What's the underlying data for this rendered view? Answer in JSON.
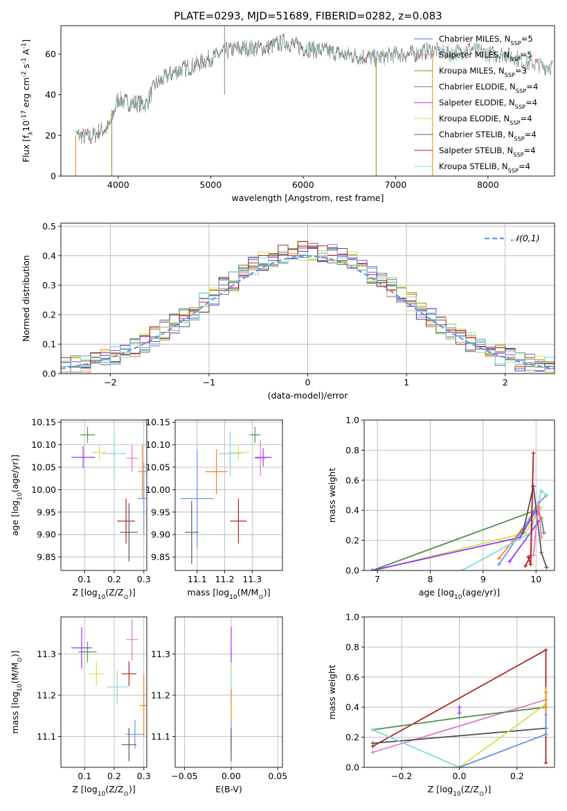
{
  "figure_title": "PLATE=0293, MJD=51689, FIBERID=0282, z=0.083",
  "colors": {
    "c0": "#4c72b0",
    "c1": "#6495ed",
    "c2": "#ff7f0e",
    "c3": "#8c8c00",
    "c4": "#4f8f4f",
    "c5": "#9b30ff",
    "c6": "#d0e050",
    "c7": "#555555",
    "c8": "#b22222",
    "c9": "#7fd8d8",
    "salp_miles": "#e377c2"
  },
  "chart_data": [
    {
      "id": "spectrum",
      "type": "line",
      "xlabel": "wavelength [Angstrom, rest frame]",
      "ylabel": "Flux [f$_\\lambda$10$^{-17}$ erg cm$^{-2}$ s$^{-1}$ A$^{-1}$]",
      "xlim": [
        3380,
        8720
      ],
      "ylim": [
        0,
        74
      ],
      "xticks": [
        4000,
        5000,
        6000,
        7000,
        8000
      ],
      "yticks": [
        0,
        20,
        40,
        60
      ],
      "grid": false,
      "legend_position": "top-right",
      "continuum": {
        "x": [
          3500,
          3600,
          3700,
          3800,
          3900,
          4000,
          4100,
          4200,
          4300,
          4400,
          4600,
          4800,
          5000,
          5200,
          5400,
          5600,
          5800,
          6000,
          6200,
          6400,
          6600,
          6800,
          7000,
          7200,
          7400,
          7600,
          7800,
          8000,
          8200,
          8400,
          8600
        ],
        "y": [
          20,
          20,
          19,
          22,
          24,
          38,
          36,
          36,
          35,
          45,
          51,
          54,
          58,
          62,
          63,
          63,
          66,
          63,
          62,
          60,
          59,
          58,
          60,
          60,
          62,
          60,
          63,
          60,
          60,
          56,
          54
        ]
      },
      "series": [
        {
          "name": "Chabrier MILES, N$_{SSP}$=5",
          "color_key": "c0",
          "xrange": [
            3540,
            7400
          ]
        },
        {
          "name": "Salpeter MILES, N$_{SSP}$=5",
          "color_key": "salp_miles",
          "xrange": [
            3540,
            7400
          ]
        },
        {
          "name": "Kroupa MILES, N$_{SSP}$=3",
          "color_key": "c3",
          "xrange": [
            3540,
            7400
          ]
        },
        {
          "name": "Chabrier ELODIE, N$_{SSP}$=4",
          "color_key": "c4",
          "xrange": [
            3900,
            6800
          ]
        },
        {
          "name": "Salpeter ELODIE, N$_{SSP}$=4",
          "color_key": "c5",
          "xrange": [
            3900,
            6800
          ]
        },
        {
          "name": "Kroupa ELODIE, N$_{SSP}$=4",
          "color_key": "c6",
          "xrange": [
            3900,
            6800
          ]
        },
        {
          "name": "Chabrier STELIB, N$_{SSP}$=4",
          "color_key": "c7",
          "xrange": [
            3540,
            8700
          ]
        },
        {
          "name": "Salpeter STELIB, N$_{SSP}$=4",
          "color_key": "c8",
          "xrange": [
            3540,
            8700
          ]
        },
        {
          "name": "Kroupa STELIB, N$_{SSP}$=4",
          "color_key": "c9",
          "xrange": [
            3540,
            8700
          ]
        }
      ]
    },
    {
      "id": "residuals",
      "type": "histogram",
      "xlabel": "(data-model)/error",
      "ylabel": "Normed distribution",
      "xlim": [
        -2.5,
        2.5
      ],
      "ylim": [
        0,
        0.51
      ],
      "xticks": [
        -2,
        -1,
        0,
        1,
        2
      ],
      "yticks": [
        0.0,
        0.1,
        0.2,
        0.3,
        0.4,
        0.5
      ],
      "grid": true,
      "reference_curve": {
        "name": "$\\mathcal{N}(0,1)$",
        "mean": 0,
        "sigma": 1,
        "color_key": "c1",
        "style": "dashed"
      },
      "legend_position": "top-right",
      "bin_width": 0.1,
      "series_color_keys": [
        "c0",
        "c1",
        "c2",
        "c3",
        "c4",
        "c5",
        "c6",
        "c7",
        "c8",
        "c9"
      ]
    },
    {
      "id": "age-vs-Z",
      "type": "errorbar",
      "xlabel": "Z [log$_{10}$(Z/Z$_\\odot$)]",
      "ylabel": "age  [log$_{10}$(age/yr)]",
      "xlim": [
        0.02,
        0.31
      ],
      "ylim": [
        9.82,
        10.155
      ],
      "xticks": [
        0.1,
        0.2,
        0.3
      ],
      "yticks": [
        9.85,
        9.9,
        9.95,
        10.0,
        10.05,
        10.1,
        10.15
      ],
      "points": [
        {
          "x": 0.11,
          "y": 10.122,
          "xerr": 0.025,
          "yerr": 0.018,
          "color_key": "c4"
        },
        {
          "x": 0.15,
          "y": 10.083,
          "xerr": 0.025,
          "yerr": 0.018,
          "color_key": "c6"
        },
        {
          "x": 0.095,
          "y": 10.072,
          "xerr": 0.04,
          "yerr": 0.025,
          "color_key": "c5"
        },
        {
          "x": 0.26,
          "y": 10.07,
          "xerr": 0.02,
          "yerr": 0.03,
          "color_key": "salp_miles"
        },
        {
          "x": 0.2,
          "y": 10.08,
          "xerr": 0.04,
          "yerr": 0.05,
          "color_key": "c9"
        },
        {
          "x": 0.295,
          "y": 10.04,
          "xerr": 0.015,
          "yerr": 0.06,
          "color_key": "c2"
        },
        {
          "x": 0.3,
          "y": 9.98,
          "xerr": 0.02,
          "yerr": 0.08,
          "color_key": "c1"
        },
        {
          "x": 0.24,
          "y": 9.93,
          "xerr": 0.03,
          "yerr": 0.05,
          "color_key": "c8"
        },
        {
          "x": 0.25,
          "y": 9.905,
          "xerr": 0.03,
          "yerr": 0.065,
          "color_key": "c7"
        }
      ]
    },
    {
      "id": "age-vs-mass",
      "type": "errorbar",
      "xlabel": "mass [log$_{10}$(M/M$_\\odot$)]",
      "ylabel": "",
      "xlim": [
        11.02,
        11.41
      ],
      "ylim": [
        9.82,
        10.155
      ],
      "xticks": [
        11.1,
        11.2,
        11.3
      ],
      "yticks": [
        9.85,
        9.9,
        9.95,
        10.0,
        10.05,
        10.1,
        10.15
      ],
      "points": [
        {
          "x": 11.31,
          "y": 10.122,
          "xerr": 0.02,
          "yerr": 0.018,
          "color_key": "c4"
        },
        {
          "x": 11.25,
          "y": 10.083,
          "xerr": 0.04,
          "yerr": 0.018,
          "color_key": "c6"
        },
        {
          "x": 11.34,
          "y": 10.072,
          "xerr": 0.03,
          "yerr": 0.02,
          "color_key": "c5"
        },
        {
          "x": 11.33,
          "y": 10.07,
          "xerr": 0.02,
          "yerr": 0.04,
          "color_key": "salp_miles"
        },
        {
          "x": 11.22,
          "y": 10.08,
          "xerr": 0.04,
          "yerr": 0.05,
          "color_key": "c9"
        },
        {
          "x": 11.17,
          "y": 10.04,
          "xerr": 0.04,
          "yerr": 0.05,
          "color_key": "c2"
        },
        {
          "x": 11.1,
          "y": 9.98,
          "xerr": 0.06,
          "yerr": 0.11,
          "color_key": "c1"
        },
        {
          "x": 11.25,
          "y": 9.93,
          "xerr": 0.03,
          "yerr": 0.05,
          "color_key": "c8"
        },
        {
          "x": 11.08,
          "y": 9.905,
          "xerr": 0.025,
          "yerr": 0.07,
          "color_key": "c7"
        }
      ]
    },
    {
      "id": "massweight-vs-age",
      "type": "line",
      "xlabel": "age  [log$_{10}$(age/yr)]",
      "ylabel": "mass weight",
      "xlim": [
        6.75,
        10.35
      ],
      "ylim": [
        0,
        1.0
      ],
      "xticks": [
        7,
        8,
        9,
        10
      ],
      "yticks": [
        0.0,
        0.2,
        0.4,
        0.6,
        0.8,
        1.0
      ],
      "grid": true,
      "series": [
        {
          "color_key": "c4",
          "points": [
            [
              6.9,
              0.0
            ],
            [
              10.0,
              0.4
            ],
            [
              10.1,
              0.35
            ],
            [
              10.15,
              0.25
            ]
          ]
        },
        {
          "color_key": "c6",
          "points": [
            [
              6.95,
              0.0
            ],
            [
              9.8,
              0.25
            ],
            [
              10.1,
              0.42
            ],
            [
              10.0,
              0.38
            ]
          ]
        },
        {
          "color_key": "c5",
          "points": [
            [
              6.9,
              0.0
            ],
            [
              9.7,
              0.22
            ],
            [
              10.0,
              0.4
            ],
            [
              10.1,
              0.35
            ],
            [
              9.5,
              0.06
            ]
          ]
        },
        {
          "color_key": "c2",
          "points": [
            [
              9.3,
              0.08
            ],
            [
              9.9,
              0.35
            ],
            [
              10.0,
              0.42
            ],
            [
              10.1,
              0.35
            ]
          ]
        },
        {
          "color_key": "c1",
          "points": [
            [
              9.3,
              0.04
            ],
            [
              9.8,
              0.3
            ],
            [
              10.05,
              0.45
            ],
            [
              10.2,
              0.5
            ]
          ]
        },
        {
          "color_key": "c9",
          "points": [
            [
              8.6,
              0.0
            ],
            [
              9.9,
              0.25
            ],
            [
              10.1,
              0.53
            ],
            [
              10.2,
              0.5
            ]
          ]
        },
        {
          "color_key": "c7",
          "points": [
            [
              9.75,
              0.25
            ],
            [
              9.95,
              0.56
            ],
            [
              10.1,
              0.12
            ],
            [
              10.2,
              0.02
            ]
          ]
        },
        {
          "color_key": "c8",
          "points": [
            [
              9.8,
              0.03
            ],
            [
              9.9,
              0.1
            ],
            [
              9.95,
              0.78
            ],
            [
              9.9,
              0.04
            ],
            [
              9.85,
              0.09
            ]
          ]
        },
        {
          "color_key": "salp_miles",
          "points": [
            [
              9.95,
              0.1
            ],
            [
              10.05,
              0.45
            ],
            [
              10.1,
              0.22
            ]
          ]
        }
      ]
    },
    {
      "id": "mass-vs-Z",
      "type": "errorbar",
      "xlabel": "Z [log$_{10}$(Z/Z$_\\odot$)]",
      "ylabel": "mass [log$_{10}$(M/M$_\\odot$)]",
      "xlim": [
        0.02,
        0.31
      ],
      "ylim": [
        11.025,
        11.39
      ],
      "xticks": [
        0.1,
        0.2,
        0.3
      ],
      "yticks": [
        11.1,
        11.2,
        11.3
      ],
      "points": [
        {
          "x": 0.11,
          "y": 11.305,
          "xerr": 0.03,
          "yerr": 0.025,
          "color_key": "c4"
        },
        {
          "x": 0.09,
          "y": 11.315,
          "xerr": 0.035,
          "yerr": 0.05,
          "color_key": "c5"
        },
        {
          "x": 0.26,
          "y": 11.335,
          "xerr": 0.02,
          "yerr": 0.05,
          "color_key": "salp_miles"
        },
        {
          "x": 0.14,
          "y": 11.252,
          "xerr": 0.025,
          "yerr": 0.03,
          "color_key": "c6"
        },
        {
          "x": 0.25,
          "y": 11.252,
          "xerr": 0.025,
          "yerr": 0.03,
          "color_key": "c8"
        },
        {
          "x": 0.21,
          "y": 11.22,
          "xerr": 0.035,
          "yerr": 0.04,
          "color_key": "c9"
        },
        {
          "x": 0.3,
          "y": 11.175,
          "xerr": 0.015,
          "yerr": 0.075,
          "color_key": "c2"
        },
        {
          "x": 0.27,
          "y": 11.105,
          "xerr": 0.03,
          "yerr": 0.035,
          "color_key": "c1"
        },
        {
          "x": 0.25,
          "y": 11.08,
          "xerr": 0.025,
          "yerr": 0.04,
          "color_key": "c7"
        }
      ]
    },
    {
      "id": "mass-vs-ebv",
      "type": "errorbar",
      "xlabel": "E(B-V)",
      "ylabel": "",
      "xlim": [
        -0.06,
        0.055
      ],
      "ylim": [
        11.025,
        11.39
      ],
      "xticks": [
        -0.05,
        0.0,
        0.05
      ],
      "yticks": [
        11.1,
        11.2,
        11.3
      ],
      "grid": true,
      "points": [
        {
          "x": 0.0,
          "y": 11.315,
          "xerr": 0.0,
          "yerr": 0.05,
          "color_key": "c5"
        },
        {
          "x": 0.0,
          "y": 11.25,
          "xerr": 0.0,
          "yerr": 0.03,
          "color_key": "c6"
        },
        {
          "x": 0.0,
          "y": 11.22,
          "xerr": 0.0,
          "yerr": 0.04,
          "color_key": "c9"
        },
        {
          "x": 0.0,
          "y": 11.175,
          "xerr": 0.0,
          "yerr": 0.04,
          "color_key": "c2"
        },
        {
          "x": 0.0,
          "y": 11.105,
          "xerr": 0.0,
          "yerr": 0.035,
          "color_key": "c1"
        },
        {
          "x": 0.0,
          "y": 11.08,
          "xerr": 0.0,
          "yerr": 0.04,
          "color_key": "c7"
        }
      ]
    },
    {
      "id": "massweight-vs-Z",
      "type": "line",
      "xlabel": "Z [log$_{10}$(Z/Z$_\\odot$)]",
      "ylabel": "mass weight",
      "xlim": [
        -0.33,
        0.33
      ],
      "ylim": [
        0,
        1.0
      ],
      "xticks": [
        -0.2,
        0.0,
        0.2
      ],
      "yticks": [
        0.0,
        0.2,
        0.4,
        0.6,
        0.8,
        1.0
      ],
      "grid": true,
      "series": [
        {
          "color_key": "c8",
          "points": [
            [
              -0.3,
              0.14
            ],
            [
              0.3,
              0.78
            ],
            [
              0.3,
              0.03
            ]
          ]
        },
        {
          "color_key": "salp_miles",
          "points": [
            [
              -0.3,
              0.1
            ],
            [
              0.3,
              0.45
            ]
          ]
        },
        {
          "color_key": "c4",
          "points": [
            [
              -0.3,
              0.25
            ],
            [
              0.0,
              0.33
            ],
            [
              0.3,
              0.4
            ]
          ]
        },
        {
          "color_key": "c7",
          "points": [
            [
              -0.3,
              0.16
            ],
            [
              0.3,
              0.26
            ]
          ]
        },
        {
          "color_key": "c9",
          "points": [
            [
              -0.3,
              0.25
            ],
            [
              0.0,
              0.0
            ],
            [
              0.3,
              0.22
            ]
          ]
        },
        {
          "color_key": "c6",
          "points": [
            [
              0.0,
              0.0
            ],
            [
              0.3,
              0.42
            ],
            [
              0.3,
              0.52
            ]
          ]
        },
        {
          "color_key": "c5",
          "points": [
            [
              0.0,
              0.4
            ],
            [
              0.0,
              0.36
            ]
          ]
        },
        {
          "color_key": "c2",
          "points": [
            [
              0.3,
              0.35
            ],
            [
              0.3,
              0.5
            ]
          ]
        },
        {
          "color_key": "c1",
          "points": [
            [
              0.0,
              0.0
            ],
            [
              0.3,
              0.22
            ],
            [
              0.3,
              0.35
            ]
          ]
        }
      ]
    }
  ]
}
